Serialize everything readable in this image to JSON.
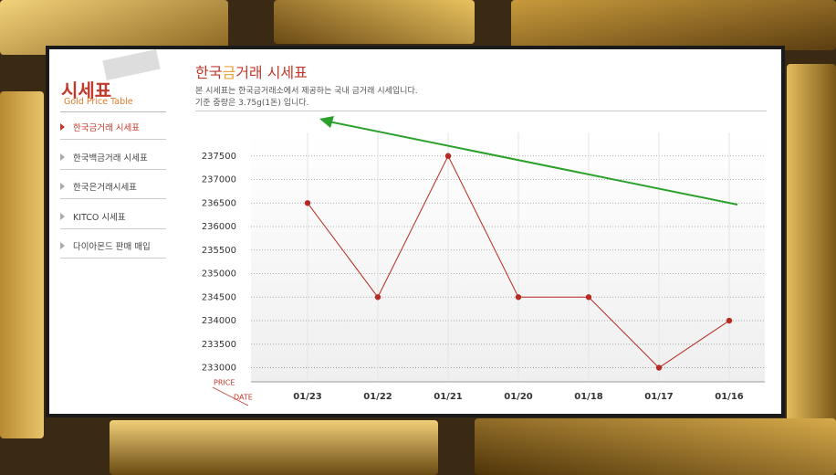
{
  "sidebar": {
    "title": "시세표",
    "subtitle": "Gold Price Table",
    "menu": [
      "한국금거래 시세표",
      "한국백금거래 시세표",
      "한국은거래시세표",
      "KITCO 시세표",
      "다이아몬드 판매 매입"
    ]
  },
  "header": {
    "title_parts": [
      "한국",
      "금",
      "거래 시세표"
    ],
    "description": [
      "본 시세표는 한국금거래소에서 제공하는 국내 금거래 시세입니다.",
      "기준 중량은 3.75g(1돈) 입니다."
    ]
  },
  "chart_data": {
    "type": "line",
    "y_label": "PRICE",
    "x_label": "DATE",
    "categories": [
      "01/23",
      "01/22",
      "01/21",
      "01/20",
      "01/18",
      "01/17",
      "01/16"
    ],
    "values": [
      236500,
      234500,
      237500,
      234500,
      234500,
      233000,
      234000
    ],
    "color": "#b52a22",
    "ylim": [
      232700,
      238000
    ],
    "yticks": [
      233000,
      233500,
      234000,
      234500,
      235000,
      235500,
      236000,
      236500,
      237000,
      237500
    ],
    "grid": true
  }
}
